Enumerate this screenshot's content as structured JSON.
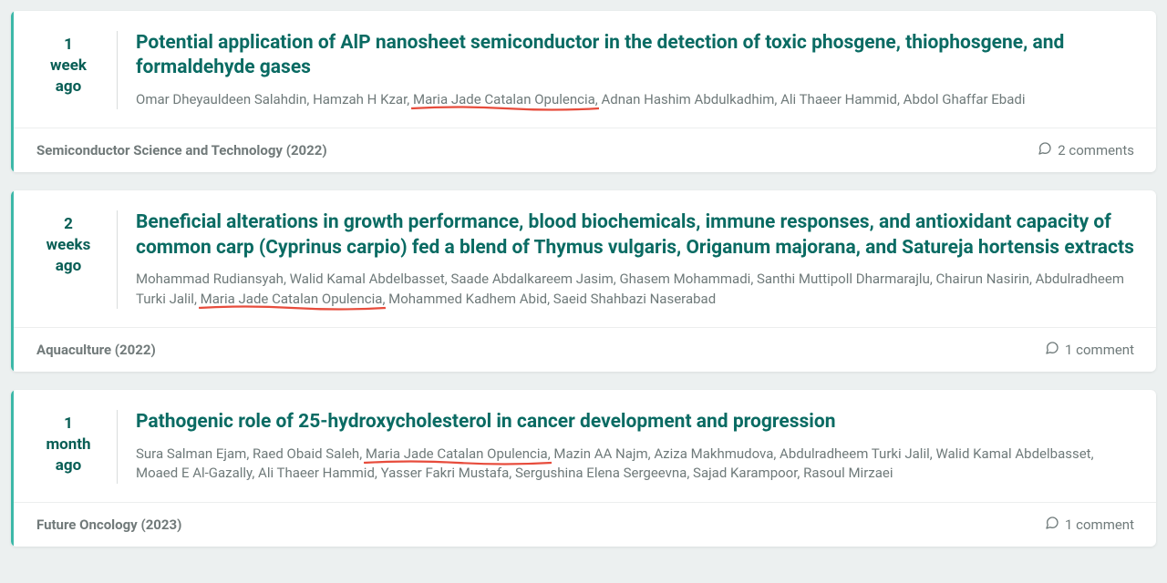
{
  "colors": {
    "accent_border": "#3db8a8",
    "title": "#0a6b63",
    "meta_text": "#6f7a7a",
    "underline": "#e74c3c",
    "card_bg": "#ffffff",
    "page_bg": "#ecf0f0",
    "divider": "#d9dddd",
    "footer_border": "#eceeee"
  },
  "highlighted_author": "Maria Jade Catalan Opulencia",
  "items": [
    {
      "time": {
        "value": "1",
        "unit": "week",
        "suffix": "ago"
      },
      "title": "Potential application of AlP nanosheet semiconductor in the detection of toxic phosgene, thiophosgene, and formaldehyde gases",
      "authors": [
        "Omar Dheyauldeen Salahdin",
        "Hamzah H Kzar",
        "Maria Jade Catalan Opulencia",
        "Adnan Hashim Abdulkadhim",
        "Ali Thaeer Hammid",
        "Abdol Ghaffar Ebadi"
      ],
      "source": "Semiconductor Science and Technology (2022)",
      "comments_label": "2 comments"
    },
    {
      "time": {
        "value": "2",
        "unit": "weeks",
        "suffix": "ago"
      },
      "title": "Beneficial alterations in growth performance, blood biochemicals, immune responses, and antioxidant capacity of common carp (Cyprinus carpio) fed a blend of Thymus vulgaris, Origanum majorana, and Satureja hortensis extracts",
      "authors": [
        "Mohammad Rudiansyah",
        "Walid Kamal Abdelbasset",
        "Saade Abdalkareem Jasim",
        "Ghasem Mohammadi",
        "Santhi Muttipoll Dharmarajlu",
        "Chairun Nasirin",
        "Abdulradheem Turki Jalil",
        "Maria Jade Catalan Opulencia",
        "Mohammed Kadhem Abid",
        "Saeid Shahbazi Naserabad"
      ],
      "source": "Aquaculture (2022)",
      "comments_label": "1 comment"
    },
    {
      "time": {
        "value": "1",
        "unit": "month",
        "suffix": "ago"
      },
      "title": "Pathogenic role of 25-hydroxycholesterol in cancer development and progression",
      "authors": [
        "Sura Salman Ejam",
        "Raed Obaid Saleh",
        "Maria Jade Catalan Opulencia",
        "Mazin AA Najm",
        "Aziza Makhmudova",
        "Abdulradheem Turki Jalil",
        "Walid Kamal Abdelbasset",
        "Moaed E Al-Gazally",
        "Ali Thaeer Hammid",
        "Yasser Fakri Mustafa",
        "Sergushina Elena Sergeevna",
        "Sajad Karampoor",
        "Rasoul Mirzaei"
      ],
      "source": "Future Oncology (2023)",
      "comments_label": "1 comment"
    }
  ]
}
